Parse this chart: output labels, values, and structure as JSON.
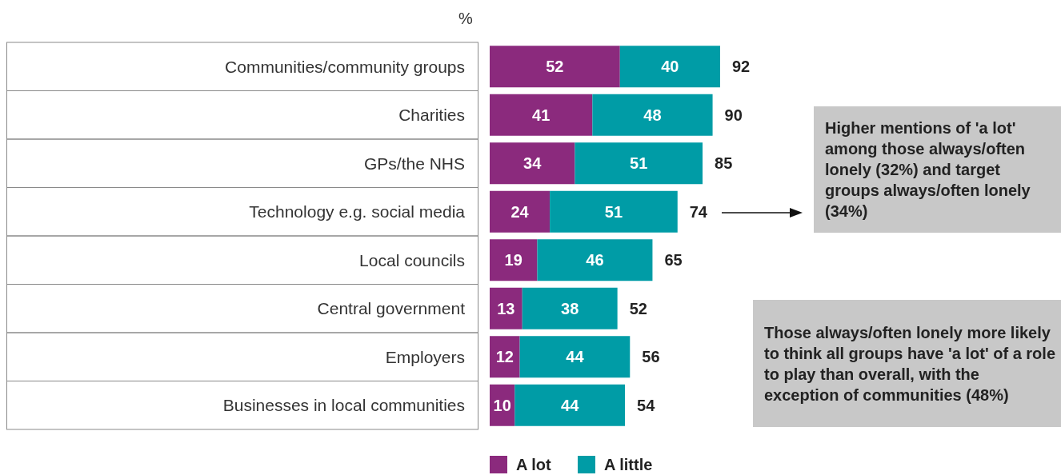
{
  "chart_data": {
    "type": "bar",
    "orientation": "horizontal",
    "stacked": true,
    "xlabel": "%",
    "categories": [
      "Communities/community groups",
      "Charities",
      "GPs/the NHS",
      "Technology e.g. social media",
      "Local councils",
      "Central government",
      "Employers",
      "Businesses in local communities"
    ],
    "series": [
      {
        "name": "A lot",
        "color": "#8b2a7d",
        "values": [
          52,
          41,
          34,
          24,
          19,
          13,
          12,
          10
        ]
      },
      {
        "name": "A little",
        "color": "#009ca6",
        "values": [
          40,
          48,
          51,
          51,
          46,
          38,
          44,
          44
        ]
      }
    ],
    "data_labels": true,
    "totals": [
      "92",
      "90",
      "85",
      "74",
      "65",
      "52",
      "56",
      "54"
    ],
    "legend": "bottom",
    "annotations": [
      "Higher mentions of 'a lot' among those always/often lonely (32%) and target groups always/often lonely (34%)",
      "Those always/often lonely more likely to think all groups have 'a lot' of a role to play than overall, with the exception of communities (48%)"
    ]
  }
}
